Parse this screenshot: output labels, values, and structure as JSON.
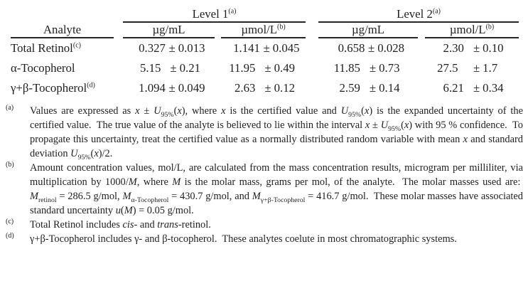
{
  "table": {
    "level_headers": [
      {
        "text": "Level 1",
        "sup": "(a)"
      },
      {
        "text": "Level 2",
        "sup": "(a)"
      }
    ],
    "col_headers": [
      {
        "text": "Analyte",
        "sup": ""
      },
      {
        "text": "µg/mL",
        "sup": ""
      },
      {
        "text": "µmol/L",
        "sup": "(b)"
      },
      {
        "text": "µg/mL",
        "sup": ""
      },
      {
        "text": "µmol/L",
        "sup": "(b)"
      }
    ],
    "pm": "±",
    "rows": [
      {
        "analyte": "Total Retinol",
        "sup": "(c)",
        "values": [
          {
            "v": "0.327",
            "u": "0.013"
          },
          {
            "v": "1.141",
            "u": "0.045"
          },
          {
            "v": "0.658",
            "u": "0.028"
          },
          {
            "v": "2.30",
            "u": "0.10"
          }
        ]
      },
      {
        "analyte": "α-Tocopherol",
        "sup": "",
        "values": [
          {
            "v": "5.15",
            "u": "0.21"
          },
          {
            "v": "11.95",
            "u": "0.49"
          },
          {
            "v": "11.85",
            "u": "0.73"
          },
          {
            "v": "27.5",
            "u": "1.7"
          }
        ]
      },
      {
        "analyte": "γ+β-Tocopherol",
        "sup": "(d)",
        "values": [
          {
            "v": "1.094",
            "u": "0.049"
          },
          {
            "v": "2.63",
            "u": "0.12"
          },
          {
            "v": "2.59",
            "u": "0.14"
          },
          {
            "v": "6.21",
            "u": "0.34"
          }
        ]
      }
    ]
  },
  "footnotes": [
    {
      "marker": "(a)",
      "segments": [
        {
          "t": "Values are expressed as "
        },
        {
          "t": "x",
          "i": true
        },
        {
          "t": " ± "
        },
        {
          "t": "U",
          "i": true
        },
        {
          "t": "95%",
          "sub": true
        },
        {
          "t": "("
        },
        {
          "t": "x",
          "i": true
        },
        {
          "t": "), where "
        },
        {
          "t": "x",
          "i": true
        },
        {
          "t": " is the certified value and "
        },
        {
          "t": "U",
          "i": true
        },
        {
          "t": "95%",
          "sub": true
        },
        {
          "t": "("
        },
        {
          "t": "x",
          "i": true
        },
        {
          "t": ") is the expanded uncertainty of the certified value.  The true value of the analyte is believed to lie within the interval "
        },
        {
          "t": "x",
          "i": true
        },
        {
          "t": " ± "
        },
        {
          "t": "U",
          "i": true
        },
        {
          "t": "95%",
          "sub": true
        },
        {
          "t": "("
        },
        {
          "t": "x",
          "i": true
        },
        {
          "t": ") with 95 % confidence.  To propagate this uncertainty, treat the certified value as a normally distributed random variable with mean "
        },
        {
          "t": "x",
          "i": true
        },
        {
          "t": " and standard deviation "
        },
        {
          "t": "U",
          "i": true
        },
        {
          "t": "95%",
          "sub": true
        },
        {
          "t": "("
        },
        {
          "t": "x",
          "i": true
        },
        {
          "t": ")/2."
        }
      ]
    },
    {
      "marker": "(b)",
      "segments": [
        {
          "t": "Amount concentration values, mol/L, are calculated from the mass concentration results, microgram per milliliter, via multiplication by 1000/"
        },
        {
          "t": "M",
          "i": true
        },
        {
          "t": ", where "
        },
        {
          "t": "M",
          "i": true
        },
        {
          "t": " is the molar mass, grams per mol, of the analyte.  The molar masses used are:  "
        },
        {
          "t": "M",
          "i": true
        },
        {
          "t": "retinol",
          "sub": true
        },
        {
          "t": " = 286.5 g/mol, "
        },
        {
          "t": "M",
          "i": true
        },
        {
          "t": "α-Tocopherol",
          "sub": true
        },
        {
          "t": " = 430.7 g/mol, and "
        },
        {
          "t": "M",
          "i": true
        },
        {
          "t": "γ+β-Tocopherol",
          "sub": true
        },
        {
          "t": " = 416.7 g/mol.  These molar masses have associated standard uncertainty "
        },
        {
          "t": "u",
          "i": true
        },
        {
          "t": "("
        },
        {
          "t": "M",
          "i": true
        },
        {
          "t": ") = 0.05 g/mol."
        }
      ]
    },
    {
      "marker": "(c)",
      "segments": [
        {
          "t": "Total Retinol includes "
        },
        {
          "t": "cis",
          "i": true
        },
        {
          "t": "- and "
        },
        {
          "t": "trans",
          "i": true
        },
        {
          "t": "-retinol."
        }
      ]
    },
    {
      "marker": "(d)",
      "segments": [
        {
          "t": "γ+β-Tocopherol includes γ- and β-tocopherol.  These analytes coelute in most chromatographic systems."
        }
      ]
    }
  ],
  "colors": {
    "text": "#1f1f1f",
    "rule": "#262626",
    "background": "#ffffff"
  }
}
